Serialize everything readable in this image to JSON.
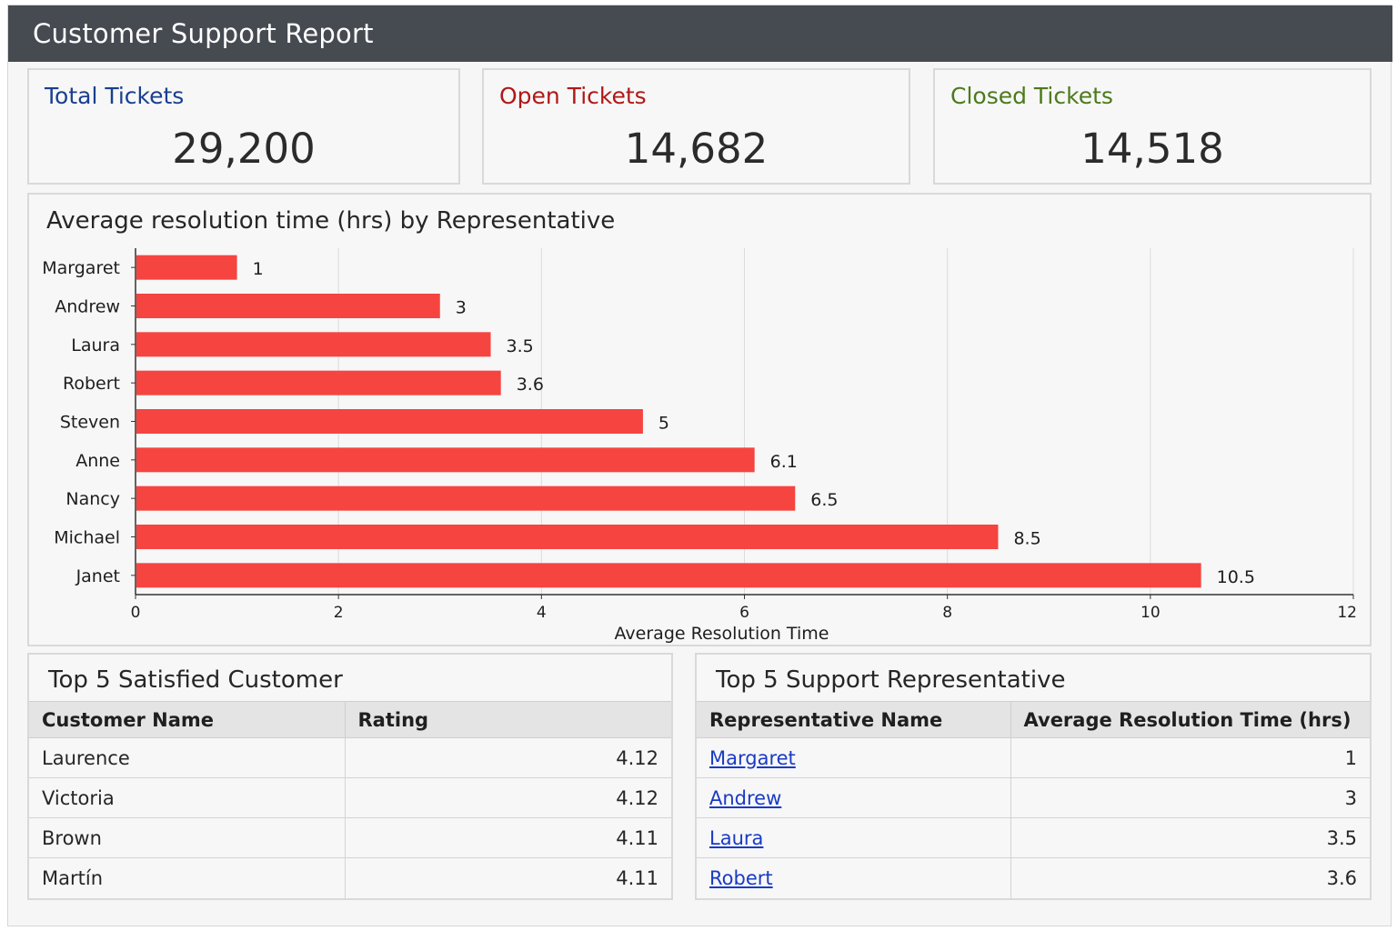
{
  "header": {
    "title": "Customer Support Report"
  },
  "kpis": {
    "total": {
      "label": "Total Tickets",
      "value": "29,200",
      "color": "#1a3f8f"
    },
    "open": {
      "label": "Open Tickets",
      "value": "14,682",
      "color": "#b01818"
    },
    "closed": {
      "label": "Closed Tickets",
      "value": "14,518",
      "color": "#4c7a1c"
    }
  },
  "chart": {
    "title": "Average resolution time (hrs) by Representative"
  },
  "chart_data": {
    "type": "bar",
    "orientation": "horizontal",
    "categories": [
      "Margaret",
      "Andrew",
      "Laura",
      "Robert",
      "Steven",
      "Anne",
      "Nancy",
      "Michael",
      "Janet"
    ],
    "values": [
      1,
      3,
      3.5,
      3.6,
      5,
      6.1,
      6.5,
      8.5,
      10.5
    ],
    "data_labels": [
      "1",
      "3",
      "3.5",
      "3.6",
      "5",
      "6.1",
      "6.5",
      "8.5",
      "10.5"
    ],
    "title": "Average resolution time (hrs) by Representative",
    "xlabel": "Average Resolution Time",
    "ylabel": "",
    "xlim": [
      0,
      12
    ],
    "xticks": [
      0,
      2,
      4,
      6,
      8,
      10,
      12
    ],
    "bar_color": "#f64440",
    "grid": true
  },
  "customers": {
    "title": "Top 5 Satisfied Customer",
    "headers": [
      "Customer Name",
      "Rating"
    ],
    "rows": [
      [
        "Laurence",
        "4.12"
      ],
      [
        "Victoria",
        "4.12"
      ],
      [
        "Brown",
        "4.11"
      ],
      [
        "Martín",
        "4.11"
      ]
    ]
  },
  "reps": {
    "title": "Top 5 Support Representative",
    "headers": [
      "Representative Name",
      "Average Resolution Time (hrs)"
    ],
    "rows": [
      [
        "Margaret",
        "1"
      ],
      [
        "Andrew",
        "3"
      ],
      [
        "Laura",
        "3.5"
      ],
      [
        "Robert",
        "3.6"
      ]
    ]
  }
}
